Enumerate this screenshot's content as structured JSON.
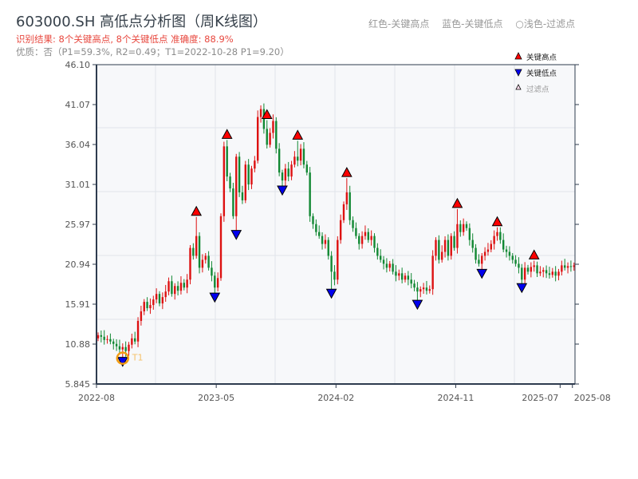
{
  "header": {
    "title": "603000.SH 高低点分析图（周K线图）",
    "result": "识别结果: 8个关键高点, 8个关键低点   准确度: 88.9%",
    "quality": "优质：否（P1=59.3%, R2=0.49；T1=2022-10-28 P1=9.20）",
    "color_legend": [
      "红色-关键高点",
      "蓝色-关键低点",
      "○浅色-过滤点"
    ]
  },
  "chart_data": {
    "type": "candlestick",
    "title": "603000.SH 高低点分析图（周K线图）",
    "ylim": [
      5.845,
      46.1
    ],
    "yticks": [
      "46.10",
      "41.07",
      "36.04",
      "31.01",
      "25.97",
      "20.94",
      "15.91",
      "10.88",
      "5.845"
    ],
    "xticks": [
      {
        "label": "2022-08",
        "week": 0
      },
      {
        "label": "2023-05",
        "week": 39
      },
      {
        "label": "2024-02",
        "week": 78
      },
      {
        "label": "2024-11",
        "week": 117
      },
      {
        "label": "2025-07",
        "week": 151
      },
      {
        "label": "2025-08",
        "week": 155
      }
    ],
    "legend": [
      "关键高点",
      "关键低点",
      "过滤点"
    ],
    "legend_position": "top-right",
    "first_open": 11.6,
    "weekly_close": [
      12.0,
      11.8,
      11.4,
      11.5,
      11.2,
      10.9,
      10.6,
      10.2,
      10.5,
      10.0,
      10.8,
      11.6,
      11.2,
      13.8,
      15.0,
      16.2,
      15.4,
      15.8,
      16.5,
      17.2,
      16.0,
      16.8,
      17.5,
      18.8,
      17.2,
      18.2,
      17.6,
      18.6,
      18.0,
      19.0,
      23.0,
      22.0,
      24.5,
      20.5,
      21.5,
      22.0,
      20.5,
      19.5,
      18.0,
      19.2,
      27.0,
      35.8,
      32.0,
      30.5,
      27.0,
      34.5,
      30.0,
      29.0,
      33.5,
      31.0,
      33.0,
      34.0,
      39.5,
      40.5,
      38.0,
      36.0,
      37.5,
      39.0,
      35.5,
      32.5,
      31.5,
      33.0,
      32.0,
      33.5,
      34.5,
      34.0,
      35.5,
      33.5,
      32.5,
      27.0,
      26.0,
      25.0,
      24.5,
      23.5,
      24.0,
      22.0,
      20.0,
      19.0,
      24.0,
      26.5,
      28.5,
      30.0,
      26.5,
      25.5,
      24.5,
      23.5,
      24.5,
      25.0,
      24.0,
      24.5,
      23.0,
      22.0,
      21.5,
      21.0,
      20.5,
      21.0,
      20.0,
      19.5,
      19.8,
      19.0,
      19.5,
      19.0,
      18.5,
      18.0,
      17.5,
      17.8,
      18.0,
      17.6,
      17.8,
      22.0,
      24.0,
      21.5,
      22.5,
      24.0,
      22.0,
      24.5,
      23.0,
      26.0,
      25.0,
      26.0,
      25.5,
      24.0,
      23.0,
      21.5,
      21.0,
      22.0,
      22.5,
      22.8,
      23.5,
      24.5,
      25.0,
      24.0,
      22.8,
      22.5,
      22.0,
      21.5,
      21.0,
      20.5,
      19.0,
      20.5,
      20.0,
      20.6,
      20.8,
      19.8,
      20.0,
      20.2,
      19.8,
      19.6,
      20.0,
      19.5,
      20.0,
      20.8,
      20.5,
      20.7,
      20.6,
      20.8
    ],
    "key_highs": [
      {
        "week": 32,
        "price": 26.9
      },
      {
        "week": 42,
        "price": 36.6
      },
      {
        "week": 55,
        "price": 39.1
      },
      {
        "week": 65,
        "price": 36.5
      },
      {
        "week": 81,
        "price": 31.8
      },
      {
        "week": 117,
        "price": 27.9
      },
      {
        "week": 130,
        "price": 25.6
      },
      {
        "week": 142,
        "price": 21.4
      }
    ],
    "key_lows": [
      {
        "week": 8,
        "price": 9.2
      },
      {
        "week": 38,
        "price": 17.3
      },
      {
        "week": 45,
        "price": 25.2
      },
      {
        "week": 60,
        "price": 30.8
      },
      {
        "week": 76,
        "price": 17.8
      },
      {
        "week": 104,
        "price": 16.4
      },
      {
        "week": 125,
        "price": 20.3
      },
      {
        "week": 138,
        "price": 18.5
      }
    ],
    "annotation": {
      "label": "T1",
      "week": 8,
      "price": 9.2
    },
    "colors": {
      "up": "#dd1111",
      "down": "#118833",
      "high": "#ff0000",
      "low": "#0000ee",
      "t1": "#f39c12",
      "t1_text": "#f5c26b",
      "grid": "#e1e4ea",
      "axis": "#2e3b4e",
      "plot_bg": "#f7f8fa"
    }
  }
}
